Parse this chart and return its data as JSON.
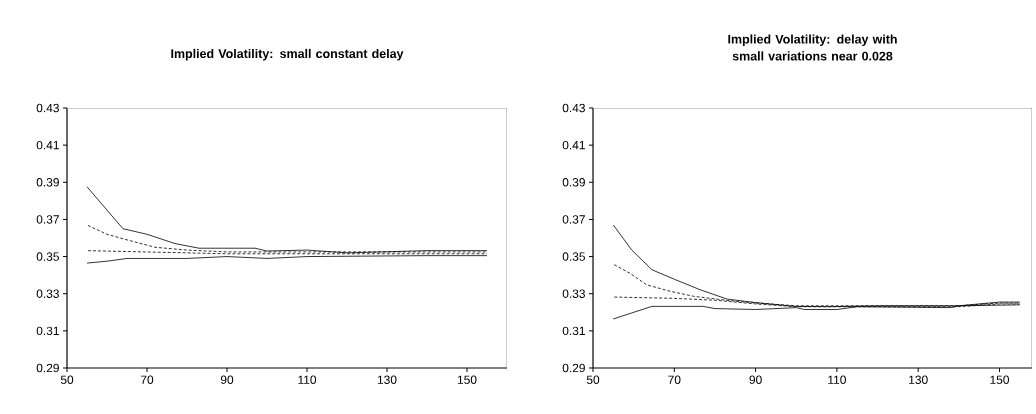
{
  "chart_data": [
    {
      "type": "line",
      "title": "Implied Volatility: small constant delay",
      "xlim": [
        50,
        160
      ],
      "xticks": [
        50,
        70,
        90,
        110,
        130,
        150
      ],
      "ylim": [
        0.29,
        0.43
      ],
      "yticks": [
        0.29,
        0.31,
        0.33,
        0.35,
        0.37,
        0.39,
        0.41,
        0.43
      ],
      "marker": "none",
      "series": [
        {
          "color": "#000000",
          "line_style": "solid",
          "x": [
            55,
            60,
            64,
            70,
            77,
            83,
            97,
            100,
            110,
            120,
            140,
            155
          ],
          "values": [
            0.3876,
            0.375,
            0.365,
            0.362,
            0.357,
            0.3545,
            0.3545,
            0.353,
            0.3535,
            0.352,
            0.3532,
            0.3532
          ]
        },
        {
          "color": "#000000",
          "line_style": "dashed",
          "x": [
            55,
            60,
            65,
            72,
            80,
            90,
            100,
            120,
            140,
            155
          ],
          "values": [
            0.367,
            0.362,
            0.359,
            0.355,
            0.3535,
            0.3525,
            0.3525,
            0.3525,
            0.3525,
            0.3525
          ]
        },
        {
          "color": "#000000",
          "line_style": "dashed",
          "x": [
            55,
            80,
            90,
            100,
            120,
            140,
            155
          ],
          "values": [
            0.3532,
            0.352,
            0.3515,
            0.3515,
            0.3515,
            0.3515,
            0.3515
          ]
        },
        {
          "color": "#000000",
          "line_style": "solid",
          "x": [
            55,
            60,
            65,
            80,
            90,
            100,
            110,
            140,
            155
          ],
          "values": [
            0.3465,
            0.3475,
            0.349,
            0.349,
            0.35,
            0.349,
            0.35,
            0.3505,
            0.3505
          ]
        }
      ]
    },
    {
      "type": "line",
      "title": "Implied Volatility: delay with small variations near 0.028",
      "xlim": [
        50,
        158
      ],
      "xticks": [
        50,
        70,
        90,
        110,
        130,
        150
      ],
      "ylim": [
        0.29,
        0.43
      ],
      "yticks": [
        0.29,
        0.31,
        0.33,
        0.35,
        0.37,
        0.39,
        0.41,
        0.43
      ],
      "marker": "none",
      "series": [
        {
          "color": "#000000",
          "line_style": "solid",
          "x": [
            55,
            59.5,
            64.5,
            70,
            76.4,
            83,
            89.7,
            99.6,
            108,
            120,
            140,
            150,
            155
          ],
          "values": [
            0.367,
            0.3536,
            0.3429,
            0.3378,
            0.3321,
            0.3271,
            0.3253,
            0.3232,
            0.323,
            0.3235,
            0.3235,
            0.3255,
            0.3255
          ]
        },
        {
          "color": "#000000",
          "line_style": "dashed",
          "x": [
            55,
            59,
            63.2,
            69,
            74.8,
            83,
            90,
            100,
            110,
            140,
            150,
            155
          ],
          "values": [
            0.3459,
            0.3411,
            0.3348,
            0.3313,
            0.3286,
            0.3264,
            0.325,
            0.3235,
            0.3235,
            0.3235,
            0.325,
            0.325
          ]
        },
        {
          "color": "#000000",
          "line_style": "dashed",
          "x": [
            55,
            70,
            80,
            90,
            100,
            140,
            150,
            155
          ],
          "values": [
            0.3282,
            0.3275,
            0.3265,
            0.3245,
            0.323,
            0.323,
            0.3245,
            0.3245
          ]
        },
        {
          "color": "#000000",
          "line_style": "solid",
          "x": [
            55,
            64.5,
            77,
            80,
            90,
            100,
            102,
            110,
            115,
            138,
            140,
            155
          ],
          "values": [
            0.3164,
            0.3232,
            0.3232,
            0.322,
            0.3215,
            0.3225,
            0.3215,
            0.3215,
            0.323,
            0.3225,
            0.3235,
            0.324
          ]
        }
      ]
    }
  ]
}
